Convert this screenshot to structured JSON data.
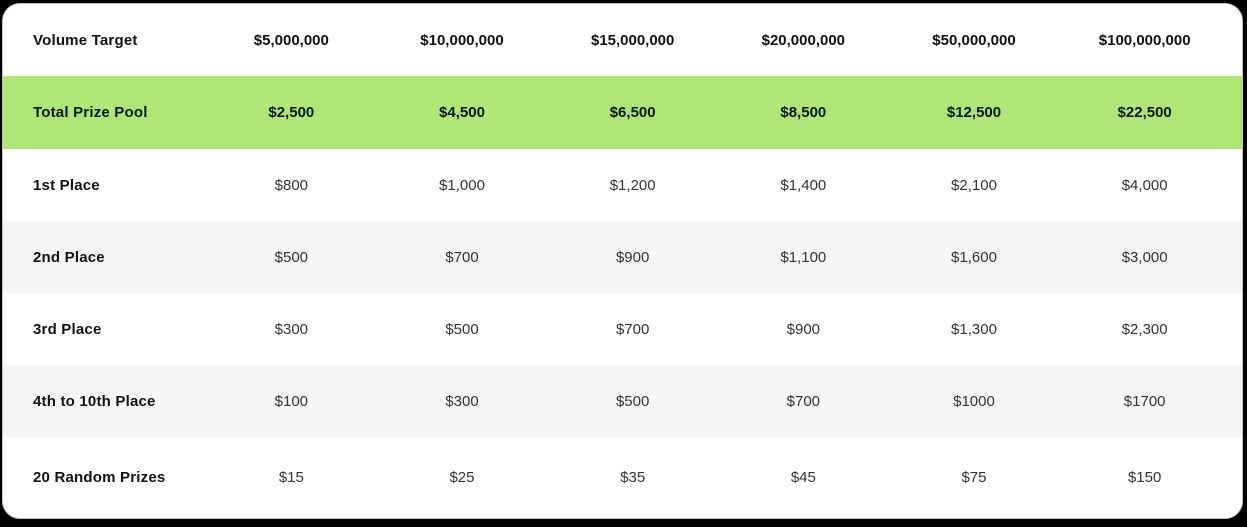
{
  "table": {
    "header": {
      "label": "Volume Target",
      "columns": [
        "$5,000,000",
        "$10,000,000",
        "$15,000,000",
        "$20,000,000",
        "$50,000,000",
        "$100,000,000"
      ]
    },
    "prize_pool": {
      "label": "Total Prize Pool",
      "values": [
        "$2,500",
        "$4,500",
        "$6,500",
        "$8,500",
        "$12,500",
        "$22,500"
      ]
    },
    "rows": [
      {
        "label": "1st Place",
        "values": [
          "$800",
          "$1,000",
          "$1,200",
          "$1,400",
          "$2,100",
          "$4,000"
        ]
      },
      {
        "label": "2nd Place",
        "values": [
          "$500",
          "$700",
          "$900",
          "$1,100",
          "$1,600",
          "$3,000"
        ]
      },
      {
        "label": "3rd Place",
        "values": [
          "$300",
          "$500",
          "$700",
          "$900",
          "$1,300",
          "$2,300"
        ]
      },
      {
        "label": "4th to 10th Place",
        "values": [
          "$100",
          "$300",
          "$500",
          "$700",
          "$1000",
          "$1700"
        ]
      },
      {
        "label": "20 Random Prizes",
        "values": [
          "$15",
          "$25",
          "$35",
          "$45",
          "$75",
          "$150"
        ]
      }
    ]
  },
  "colors": {
    "page_background": "#000000",
    "card_background": "#ffffff",
    "highlight_green": "#aee775",
    "alternate_row": "#f5f5f5",
    "label_text": "#111111",
    "value_text": "#333333"
  }
}
